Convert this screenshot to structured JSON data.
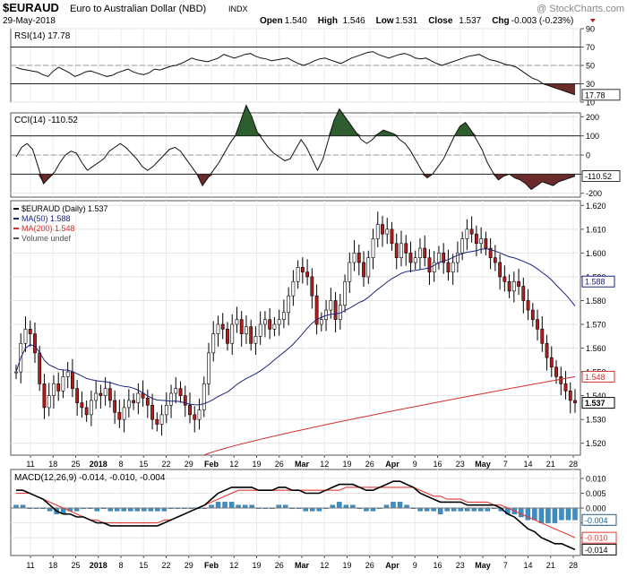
{
  "header": {
    "symbol": "$EURAUD",
    "name": "Euro to Australian Dollar (NBD)",
    "exchange": "INDX",
    "date": "29-May-2018",
    "open_label": "Open",
    "open": "1.540",
    "high_label": "High",
    "high": "1.546",
    "low_label": "Low",
    "low": "1.531",
    "close_label": "Close",
    "close": "1.537",
    "chg_label": "Chg",
    "chg": "-0.003 (-0.23%)",
    "watermark": "@ StockCharts.com"
  },
  "colors": {
    "price_line": "#000000",
    "ma50": "#1a237e",
    "ma200": "#d32f2f",
    "candle_up": "#ffffff",
    "candle_down": "#b71c1c",
    "osc_fill_high": "#2e5e2e",
    "osc_fill_low": "#6b2b2b",
    "macd_hist": "#3b8fc4",
    "macd_line": "#000000",
    "signal_line": "#e53935"
  },
  "chart_data": [
    {
      "type": "line",
      "panel": "rsi",
      "label": "RSI(14) 17.78",
      "ylim": [
        10,
        90
      ],
      "ticks": [
        "90",
        "70",
        "50",
        "30",
        "10"
      ],
      "level_lines": [
        70,
        30
      ],
      "current_value": "17.78",
      "values": [
        48,
        46,
        45,
        44,
        43,
        40,
        38,
        44,
        48,
        45,
        42,
        38,
        40,
        43,
        44,
        42,
        40,
        38,
        39,
        42,
        44,
        46,
        43,
        41,
        40,
        42,
        46,
        45,
        47,
        49,
        50,
        52,
        55,
        58,
        56,
        55,
        54,
        56,
        58,
        62,
        60,
        58,
        60,
        62,
        63,
        60,
        58,
        57,
        55,
        56,
        57,
        58,
        55,
        52,
        50,
        52,
        55,
        57,
        58,
        56,
        54,
        52,
        55,
        58,
        60,
        62,
        64,
        65,
        62,
        60,
        58,
        60,
        62,
        63,
        61,
        58,
        57,
        58,
        55,
        52,
        50,
        52,
        54,
        56,
        58,
        60,
        61,
        62,
        59,
        56,
        55,
        53,
        51,
        50,
        48,
        44,
        40,
        36,
        34,
        30,
        28,
        26,
        24,
        22,
        20,
        18
      ]
    },
    {
      "type": "line",
      "panel": "cci",
      "label": "CCI(14) -110.52",
      "ylim": [
        -220,
        220
      ],
      "ticks": [
        "200",
        "100",
        "0",
        "-100",
        "-200"
      ],
      "level_lines": [
        100,
        -100
      ],
      "current_value": "-110.52",
      "values": [
        -10,
        40,
        60,
        30,
        -60,
        -150,
        -120,
        -90,
        -40,
        0,
        20,
        10,
        -40,
        -80,
        -60,
        -40,
        -20,
        20,
        40,
        60,
        40,
        10,
        -20,
        -60,
        -80,
        -60,
        -30,
        0,
        30,
        40,
        20,
        -20,
        -60,
        -100,
        -160,
        -120,
        -80,
        -40,
        10,
        60,
        100,
        180,
        260,
        200,
        120,
        80,
        40,
        10,
        -10,
        -30,
        -20,
        30,
        80,
        40,
        -20,
        -80,
        -20,
        80,
        180,
        240,
        200,
        160,
        120,
        80,
        60,
        80,
        110,
        130,
        120,
        110,
        80,
        60,
        20,
        -30,
        -80,
        -120,
        -100,
        -60,
        -20,
        40,
        100,
        150,
        170,
        130,
        80,
        30,
        -40,
        -90,
        -130,
        -110,
        -100,
        -120,
        -130,
        -150,
        -180,
        -160,
        -140,
        -150,
        -160,
        -140,
        -130,
        -120,
        -110
      ]
    },
    {
      "type": "candlestick",
      "panel": "price",
      "legend": [
        "$EURAUD (Daily) 1.537",
        "MA(50) 1.588",
        "MA(200) 1.548",
        "Volume undef"
      ],
      "ylim": [
        1.515,
        1.622
      ],
      "ticks": [
        "1.620",
        "1.610",
        "1.600",
        "1.590",
        "1.580",
        "1.570",
        "1.560",
        "1.550",
        "1.540",
        "1.530",
        "1.520"
      ],
      "last_labels": {
        "ma50": "1.588",
        "ma200": "1.548",
        "close": "1.537"
      },
      "x_ticks": [
        "11",
        "18",
        "25",
        "2018",
        "8",
        "15",
        "22",
        "29",
        "Feb",
        "12",
        "19",
        "26",
        "Mar",
        "12",
        "19",
        "26",
        "Apr",
        "9",
        "16",
        "23",
        "May",
        "7",
        "14",
        "21",
        "28"
      ],
      "close": [
        1.55,
        1.562,
        1.568,
        1.566,
        1.558,
        1.545,
        1.535,
        1.54,
        1.545,
        1.542,
        1.548,
        1.55,
        1.543,
        1.537,
        1.535,
        1.532,
        1.538,
        1.541,
        1.54,
        1.543,
        1.538,
        1.533,
        1.53,
        1.535,
        1.538,
        1.537,
        1.541,
        1.539,
        1.536,
        1.53,
        1.528,
        1.532,
        1.536,
        1.541,
        1.543,
        1.54,
        1.536,
        1.532,
        1.53,
        1.534,
        1.545,
        1.558,
        1.566,
        1.57,
        1.568,
        1.562,
        1.57,
        1.572,
        1.566,
        1.569,
        1.562,
        1.565,
        1.57,
        1.572,
        1.568,
        1.57,
        1.572,
        1.575,
        1.582,
        1.588,
        1.594,
        1.592,
        1.59,
        1.582,
        1.57,
        1.572,
        1.576,
        1.58,
        1.572,
        1.578,
        1.588,
        1.596,
        1.6,
        1.596,
        1.59,
        1.598,
        1.606,
        1.612,
        1.608,
        1.61,
        1.604,
        1.598,
        1.604,
        1.6,
        1.596,
        1.598,
        1.602,
        1.598,
        1.592,
        1.596,
        1.6,
        1.596,
        1.592,
        1.596,
        1.6,
        1.606,
        1.61,
        1.608,
        1.604,
        1.606,
        1.602,
        1.598,
        1.596,
        1.59,
        1.588,
        1.584,
        1.588,
        1.586,
        1.58,
        1.576,
        1.572,
        1.568,
        1.562,
        1.556,
        1.552,
        1.548,
        1.545,
        1.542,
        1.538,
        1.537
      ]
    },
    {
      "type": "bar+line",
      "panel": "macd",
      "label": "MACD(12,26,9) -0.014, -0.010, -0.004",
      "ylim": [
        -0.016,
        0.013
      ],
      "ticks": [
        "0.010",
        "0.005",
        "0.000",
        "-0.005",
        "-0.010"
      ],
      "last_labels": {
        "hist": "-0.004",
        "signal": "-0.010",
        "macd": "-0.014"
      },
      "macd": [
        0.006,
        0.006,
        0.005,
        0.004,
        0.003,
        0.001,
        -0.001,
        -0.002,
        -0.002,
        -0.003,
        -0.003,
        -0.004,
        -0.005,
        -0.005,
        -0.006,
        -0.006,
        -0.006,
        -0.006,
        -0.006,
        -0.006,
        -0.006,
        -0.006,
        -0.005,
        -0.004,
        -0.003,
        -0.002,
        -0.001,
        0.0,
        0.001,
        0.003,
        0.005,
        0.006,
        0.007,
        0.007,
        0.007,
        0.007,
        0.006,
        0.006,
        0.006,
        0.007,
        0.007,
        0.006,
        0.006,
        0.005,
        0.005,
        0.005,
        0.006,
        0.007,
        0.008,
        0.008,
        0.008,
        0.007,
        0.006,
        0.006,
        0.007,
        0.008,
        0.009,
        0.009,
        0.008,
        0.007,
        0.005,
        0.004,
        0.003,
        0.002,
        0.002,
        0.002,
        0.002,
        0.001,
        0.001,
        0.001,
        0.001,
        0.001,
        0.0,
        -0.002,
        -0.003,
        -0.005,
        -0.007,
        -0.008,
        -0.01,
        -0.011,
        -0.012,
        -0.012,
        -0.013,
        -0.014
      ],
      "signal": [
        0.005,
        0.005,
        0.005,
        0.004,
        0.003,
        0.002,
        0.001,
        0.0,
        -0.001,
        -0.002,
        -0.003,
        -0.004,
        -0.004,
        -0.005,
        -0.005,
        -0.005,
        -0.005,
        -0.005,
        -0.005,
        -0.005,
        -0.005,
        -0.005,
        -0.004,
        -0.004,
        -0.003,
        -0.002,
        -0.001,
        0.0,
        0.001,
        0.002,
        0.003,
        0.004,
        0.005,
        0.006,
        0.006,
        0.006,
        0.006,
        0.006,
        0.006,
        0.006,
        0.006,
        0.006,
        0.006,
        0.006,
        0.006,
        0.006,
        0.006,
        0.006,
        0.006,
        0.007,
        0.007,
        0.007,
        0.007,
        0.007,
        0.007,
        0.007,
        0.007,
        0.007,
        0.007,
        0.007,
        0.006,
        0.005,
        0.004,
        0.004,
        0.003,
        0.003,
        0.003,
        0.002,
        0.002,
        0.002,
        0.002,
        0.001,
        0.001,
        0.0,
        -0.001,
        -0.002,
        -0.003,
        -0.004,
        -0.005,
        -0.006,
        -0.007,
        -0.008,
        -0.009,
        -0.01
      ]
    }
  ]
}
